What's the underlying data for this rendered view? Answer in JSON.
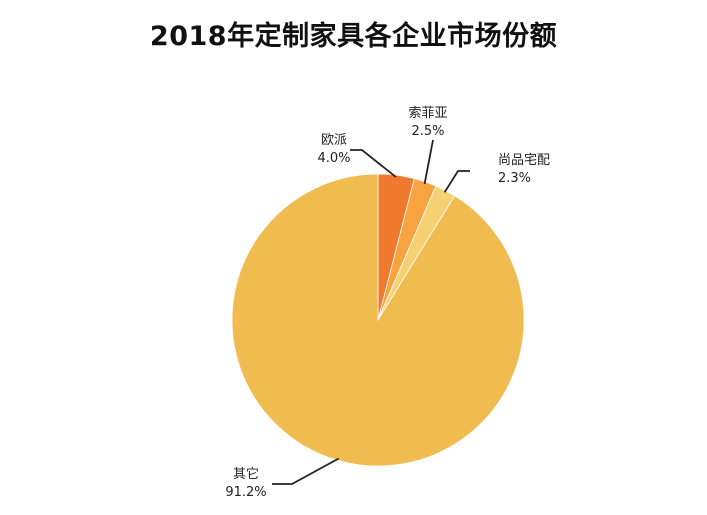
{
  "chart_data": {
    "type": "pie",
    "title": "2018年定制家具各企业市场份额",
    "categories": [
      "欧派",
      "索菲亚",
      "尚品宅配",
      "其它"
    ],
    "values": [
      4.0,
      2.5,
      2.3,
      91.2
    ],
    "value_labels": [
      "4.0%",
      "2.5%",
      "2.3%",
      "91.2%"
    ],
    "colors": [
      "#EF7A2E",
      "#F7A340",
      "#F6D173",
      "#F0BC50"
    ],
    "start_angle": "12 o'clock",
    "direction": "clockwise",
    "legend": "none"
  }
}
